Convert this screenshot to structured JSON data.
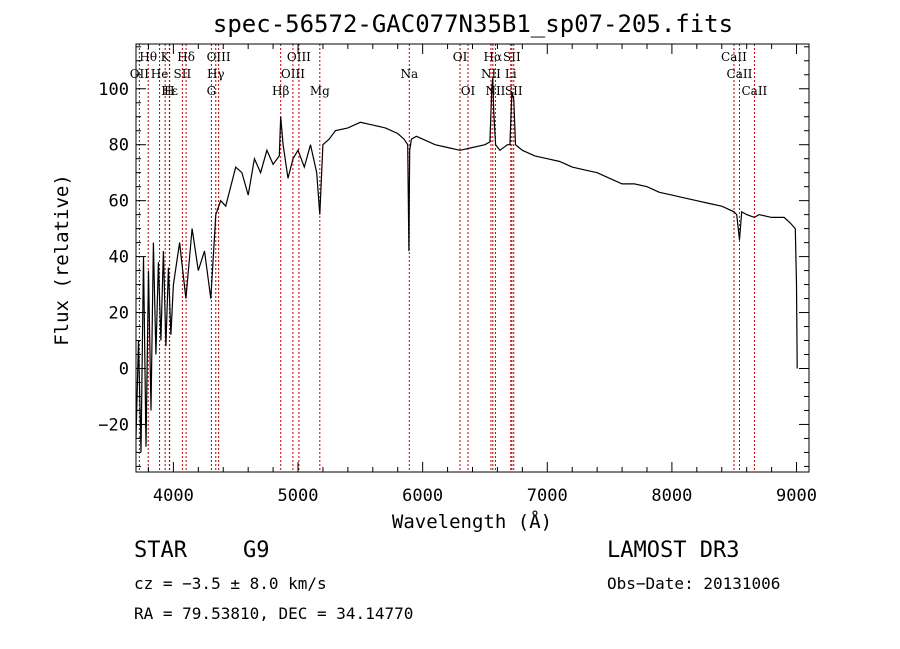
{
  "chart_data": {
    "type": "line",
    "title": "spec-56572-GAC077N35B1_sp07-205.fits",
    "xlabel": "Wavelength (Å)",
    "ylabel": "Flux (relative)",
    "xlim": [
      3700,
      9100
    ],
    "ylim": [
      -37,
      116
    ],
    "x_ticks": [
      4000,
      5000,
      6000,
      7000,
      8000,
      9000
    ],
    "x_tick_labels": [
      "4000",
      "5000",
      "6000",
      "7000",
      "8000",
      "9000"
    ],
    "y_ticks": [
      -20,
      0,
      20,
      40,
      60,
      80,
      100
    ],
    "y_tick_labels": [
      "−20",
      "0",
      "20",
      "40",
      "60",
      "80",
      "100"
    ],
    "series": [
      {
        "name": "flux",
        "x": [
          3700,
          3720,
          3740,
          3760,
          3780,
          3800,
          3820,
          3840,
          3860,
          3880,
          3900,
          3920,
          3940,
          3960,
          3980,
          4000,
          4050,
          4100,
          4150,
          4200,
          4250,
          4300,
          4340,
          4380,
          4420,
          4460,
          4500,
          4550,
          4600,
          4650,
          4700,
          4750,
          4800,
          4850,
          4861,
          4880,
          4920,
          4960,
          5000,
          5050,
          5100,
          5150,
          5175,
          5200,
          5250,
          5300,
          5400,
          5500,
          5600,
          5700,
          5800,
          5850,
          5880,
          5890,
          5893,
          5896,
          5910,
          5950,
          6000,
          6100,
          6200,
          6300,
          6400,
          6500,
          6540,
          6555,
          6563,
          6570,
          6585,
          6620,
          6680,
          6700,
          6716,
          6731,
          6745,
          6800,
          6900,
          7000,
          7100,
          7200,
          7300,
          7400,
          7500,
          7600,
          7700,
          7800,
          7900,
          8000,
          8100,
          8200,
          8300,
          8400,
          8498,
          8520,
          8542,
          8560,
          8600,
          8662,
          8700,
          8800,
          8900,
          8950,
          8990,
          9000,
          9005
        ],
        "y": [
          -25,
          10,
          -30,
          40,
          -28,
          35,
          -15,
          45,
          5,
          38,
          10,
          42,
          8,
          36,
          12,
          30,
          45,
          25,
          50,
          35,
          42,
          25,
          55,
          60,
          58,
          65,
          72,
          70,
          62,
          75,
          70,
          78,
          73,
          76,
          90,
          80,
          68,
          75,
          78,
          72,
          80,
          70,
          55,
          80,
          82,
          85,
          86,
          88,
          87,
          86,
          84,
          82,
          80,
          42,
          62,
          78,
          82,
          83,
          82,
          80,
          79,
          78,
          79,
          80,
          81,
          100,
          104,
          92,
          80,
          78,
          80,
          80,
          99,
          96,
          80,
          78,
          76,
          75,
          74,
          72,
          71,
          70,
          68,
          66,
          66,
          65,
          63,
          62,
          61,
          60,
          59,
          58,
          56,
          55,
          46,
          56,
          55,
          54,
          55,
          54,
          54,
          52,
          50,
          30,
          0
        ]
      }
    ],
    "line_markers": [
      {
        "label": "Hθ",
        "x": 3798,
        "row": 1
      },
      {
        "label": "K",
        "x": 3934,
        "row": 1
      },
      {
        "label": "Hδ",
        "x": 4102,
        "row": 1
      },
      {
        "label": "OIII",
        "x": 4363,
        "row": 1
      },
      {
        "label": "OIII",
        "x": 5007,
        "row": 1
      },
      {
        "label": "OI",
        "x": 6300,
        "row": 1
      },
      {
        "label": "Hα",
        "x": 6563,
        "row": 1
      },
      {
        "label": "SII",
        "x": 6716,
        "row": 1
      },
      {
        "label": "CaII",
        "x": 8498,
        "row": 1
      },
      {
        "label": "OII",
        "x": 3727,
        "row": 2
      },
      {
        "label": "He",
        "x": 3889,
        "row": 2
      },
      {
        "label": "SII",
        "x": 4072,
        "row": 2
      },
      {
        "label": "Hγ",
        "x": 4340,
        "row": 2
      },
      {
        "label": "OIII",
        "x": 4959,
        "row": 2
      },
      {
        "label": "Na",
        "x": 5893,
        "row": 2
      },
      {
        "label": "NII",
        "x": 6548,
        "row": 2
      },
      {
        "label": "Li",
        "x": 6707,
        "row": 2
      },
      {
        "label": "CaII",
        "x": 8542,
        "row": 2
      },
      {
        "label": "Hε",
        "x": 3970,
        "row": 3
      },
      {
        "label": "H",
        "x": 3968,
        "row": 3
      },
      {
        "label": "G",
        "x": 4305,
        "row": 3
      },
      {
        "label": "Hβ",
        "x": 4861,
        "row": 3
      },
      {
        "label": "Mg",
        "x": 5175,
        "row": 3
      },
      {
        "label": "OI",
        "x": 6364,
        "row": 3
      },
      {
        "label": "NII",
        "x": 6584,
        "row": 3
      },
      {
        "label": "SII",
        "x": 6731,
        "row": 3
      },
      {
        "label": "CaII",
        "x": 8662,
        "row": 3
      }
    ],
    "marker_color": "#c00000"
  },
  "info": {
    "object_class": "STAR",
    "subclass": "G9",
    "survey": "LAMOST DR3",
    "cz_line": "cz = −3.5 ± 8.0 km/s",
    "obs_date": "Obs−Date: 20131006",
    "coords": "RA =  79.53810, DEC =  34.14770"
  }
}
